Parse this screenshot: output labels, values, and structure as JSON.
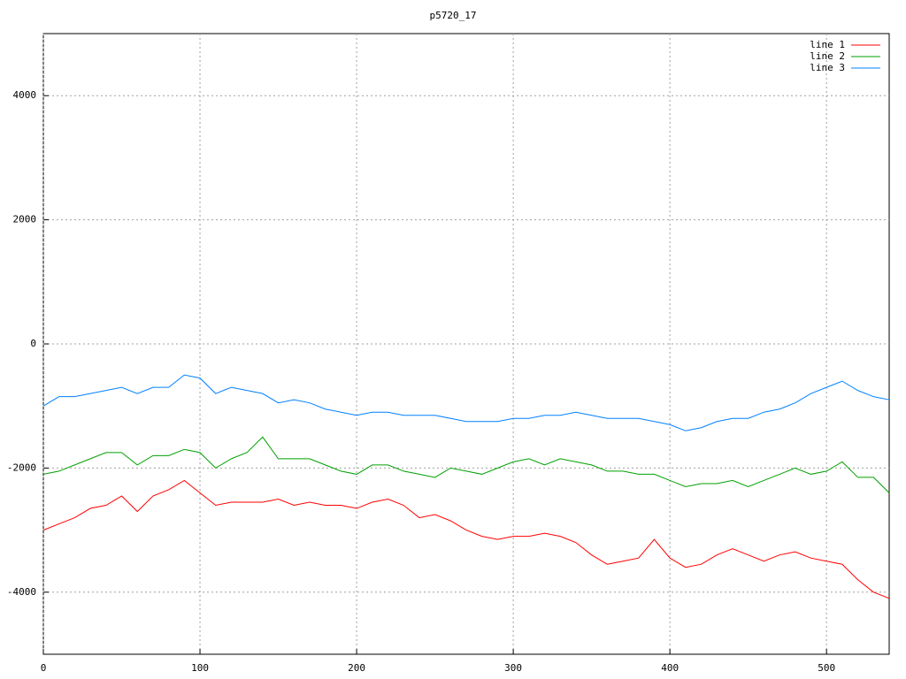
{
  "chart_data": {
    "type": "line",
    "title": "p5720_17",
    "x": [
      0,
      10,
      20,
      30,
      40,
      50,
      60,
      70,
      80,
      90,
      100,
      110,
      120,
      130,
      140,
      150,
      160,
      170,
      180,
      190,
      200,
      210,
      220,
      230,
      240,
      250,
      260,
      270,
      280,
      290,
      300,
      310,
      320,
      330,
      340,
      350,
      360,
      370,
      380,
      390,
      400,
      410,
      420,
      430,
      440,
      450,
      460,
      470,
      480,
      490,
      500,
      510,
      520,
      530,
      540
    ],
    "series": [
      {
        "name": "line 1",
        "color": "#ff0000",
        "values": [
          -3000,
          -2900,
          -2800,
          -2650,
          -2600,
          -2450,
          -2700,
          -2450,
          -2350,
          -2200,
          -2400,
          -2600,
          -2550,
          -2550,
          -2550,
          -2500,
          -2600,
          -2550,
          -2600,
          -2600,
          -2650,
          -2550,
          -2500,
          -2600,
          -2800,
          -2750,
          -2850,
          -3000,
          -3100,
          -3150,
          -3100,
          -3100,
          -3050,
          -3100,
          -3200,
          -3400,
          -3550,
          -3500,
          -3450,
          -3150,
          -3450,
          -3600,
          -3550,
          -3400,
          -3300,
          -3400,
          -3500,
          -3400,
          -3350,
          -3450,
          -3500,
          -3550,
          -3800,
          -4000,
          -4100
        ]
      },
      {
        "name": "line 2",
        "color": "#00a000",
        "values": [
          -2100,
          -2050,
          -1950,
          -1850,
          -1750,
          -1750,
          -1950,
          -1800,
          -1800,
          -1700,
          -1750,
          -2000,
          -1850,
          -1750,
          -1500,
          -1850,
          -1850,
          -1850,
          -1950,
          -2050,
          -2100,
          -1950,
          -1950,
          -2050,
          -2100,
          -2150,
          -2000,
          -2050,
          -2100,
          -2000,
          -1900,
          -1850,
          -1950,
          -1850,
          -1900,
          -1950,
          -2050,
          -2050,
          -2100,
          -2100,
          -2200,
          -2300,
          -2250,
          -2250,
          -2200,
          -2300,
          -2200,
          -2100,
          -2000,
          -2100,
          -2050,
          -1900,
          -2150,
          -2150,
          -2400
        ]
      },
      {
        "name": "line 3",
        "color": "#0080ff",
        "values": [
          -1000,
          -850,
          -850,
          -800,
          -750,
          -700,
          -800,
          -700,
          -700,
          -500,
          -550,
          -800,
          -700,
          -750,
          -800,
          -950,
          -900,
          -950,
          -1050,
          -1100,
          -1150,
          -1100,
          -1100,
          -1150,
          -1150,
          -1150,
          -1200,
          -1250,
          -1250,
          -1250,
          -1200,
          -1200,
          -1150,
          -1150,
          -1100,
          -1150,
          -1200,
          -1200,
          -1200,
          -1250,
          -1300,
          -1400,
          -1350,
          -1250,
          -1200,
          -1200,
          -1100,
          -1050,
          -950,
          -800,
          -700,
          -600,
          -750,
          -850,
          -900
        ]
      }
    ],
    "xlim": [
      0,
      540
    ],
    "xticks": [
      0,
      100,
      200,
      300,
      400,
      500
    ],
    "ylim": [
      -5000,
      5000
    ],
    "yticks": [
      -4000,
      -2000,
      0,
      2000,
      4000
    ],
    "grid": true,
    "legend": "top-right"
  }
}
